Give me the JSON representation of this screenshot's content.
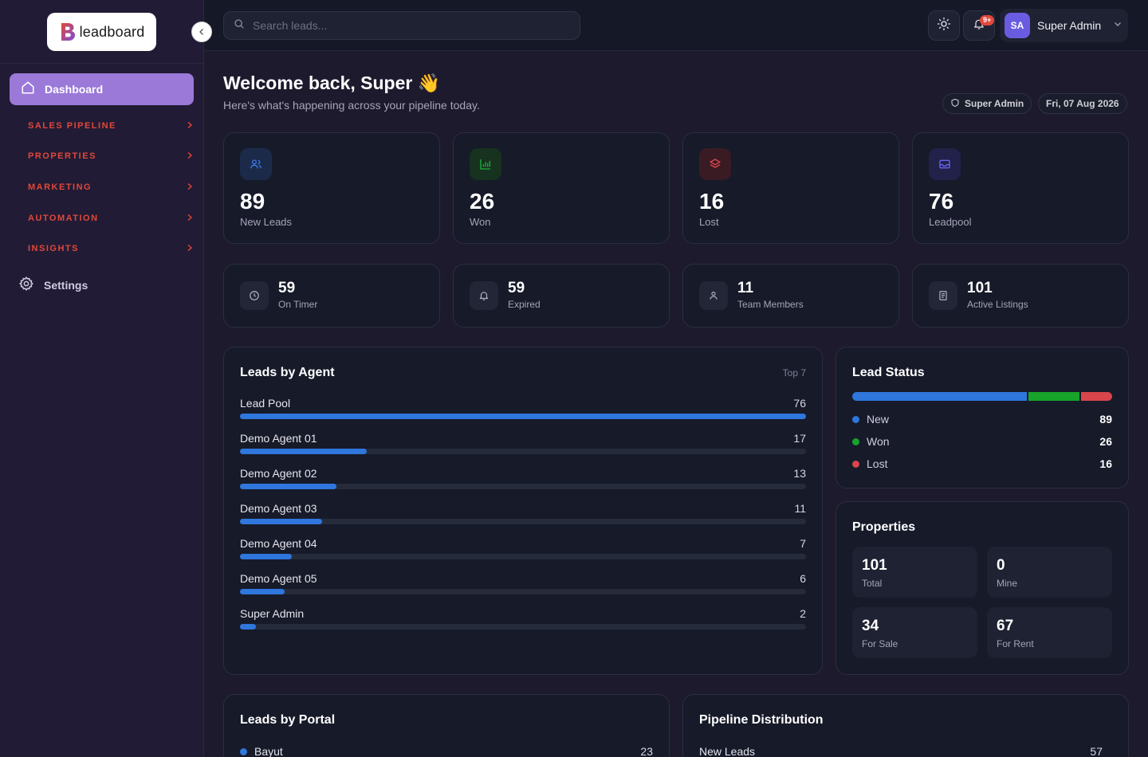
{
  "brand": {
    "logo_text": "leadboard"
  },
  "sidebar": {
    "dashboard_label": "Dashboard",
    "sections": [
      {
        "label": "SALES PIPELINE"
      },
      {
        "label": "PROPERTIES"
      },
      {
        "label": "MARKETING"
      },
      {
        "label": "AUTOMATION"
      },
      {
        "label": "INSIGHTS"
      }
    ],
    "settings_label": "Settings"
  },
  "topbar": {
    "search_placeholder": "Search leads...",
    "notification_badge": "9+",
    "user": {
      "initials": "SA",
      "name": "Super Admin"
    }
  },
  "welcome": {
    "title": "Welcome back, Super 👋",
    "subtitle": "Here's what's happening across your pipeline today.",
    "role_pill": "Super Admin",
    "date_pill": "Fri, 07 Aug 2026"
  },
  "stats": [
    {
      "value": "89",
      "label": "New Leads",
      "icon": "users-icon",
      "color": "#3b6fd8"
    },
    {
      "value": "26",
      "label": "Won",
      "icon": "bar-chart-icon",
      "color": "#18a33a"
    },
    {
      "value": "16",
      "label": "Lost",
      "icon": "layers-icon",
      "color": "#d8454a"
    },
    {
      "value": "76",
      "label": "Leadpool",
      "icon": "inbox-icon",
      "color": "#5a55d8"
    }
  ],
  "mini_stats": [
    {
      "value": "59",
      "label": "On Timer",
      "icon": "clock-icon"
    },
    {
      "value": "59",
      "label": "Expired",
      "icon": "bell-icon"
    },
    {
      "value": "11",
      "label": "Team Members",
      "icon": "user-icon"
    },
    {
      "value": "101",
      "label": "Active Listings",
      "icon": "document-icon"
    }
  ],
  "leads_by_agent": {
    "title": "Leads by Agent",
    "tag": "Top 7",
    "max": 76,
    "rows": [
      {
        "name": "Lead Pool",
        "value": 76
      },
      {
        "name": "Demo Agent 01",
        "value": 17
      },
      {
        "name": "Demo Agent 02",
        "value": 13
      },
      {
        "name": "Demo Agent 03",
        "value": 11
      },
      {
        "name": "Demo Agent 04",
        "value": 7
      },
      {
        "name": "Demo Agent 05",
        "value": 6
      },
      {
        "name": "Super Admin",
        "value": 2
      }
    ]
  },
  "lead_status": {
    "title": "Lead Status",
    "items": [
      {
        "name": "New",
        "value": 89,
        "color": "#2f76dd"
      },
      {
        "name": "Won",
        "value": 26,
        "color": "#18a32a"
      },
      {
        "name": "Lost",
        "value": 16,
        "color": "#d8454a"
      }
    ]
  },
  "properties": {
    "title": "Properties",
    "tiles": [
      {
        "value": "101",
        "label": "Total"
      },
      {
        "value": "0",
        "label": "Mine"
      },
      {
        "value": "34",
        "label": "For Sale"
      },
      {
        "value": "67",
        "label": "For Rent"
      }
    ]
  },
  "leads_by_portal": {
    "title": "Leads by Portal",
    "rows": [
      {
        "name": "Bayut",
        "value": "23",
        "color": "#2f76dd"
      }
    ]
  },
  "pipeline_distribution": {
    "title": "Pipeline Distribution",
    "rows": [
      {
        "name": "New Leads",
        "value": "57"
      }
    ]
  }
}
